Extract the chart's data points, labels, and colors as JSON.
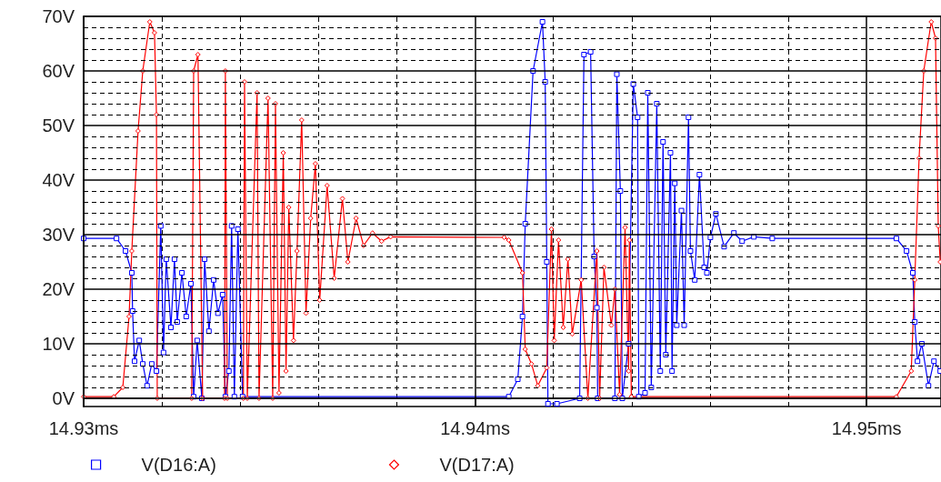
{
  "chart_data": {
    "type": "line",
    "xlim": [
      14.93,
      14.9519
    ],
    "ylim": [
      -1.5,
      70
    ],
    "xticks": [
      {
        "value": 14.93,
        "label": "14.93ms"
      },
      {
        "value": 14.932,
        "label": null
      },
      {
        "value": 14.934,
        "label": null
      },
      {
        "value": 14.936,
        "label": null
      },
      {
        "value": 14.938,
        "label": null
      },
      {
        "value": 14.94,
        "label": "14.94ms"
      },
      {
        "value": 14.942,
        "label": null
      },
      {
        "value": 14.944,
        "label": null
      },
      {
        "value": 14.946,
        "label": null
      },
      {
        "value": 14.948,
        "label": null
      },
      {
        "value": 14.95,
        "label": "14.95ms"
      }
    ],
    "yticks": [
      {
        "value": 0,
        "label": "0V"
      },
      {
        "value": 2,
        "label": null
      },
      {
        "value": 4,
        "label": null
      },
      {
        "value": 6,
        "label": null
      },
      {
        "value": 8,
        "label": null
      },
      {
        "value": 10,
        "label": "10V"
      },
      {
        "value": 12,
        "label": null
      },
      {
        "value": 14,
        "label": null
      },
      {
        "value": 16,
        "label": null
      },
      {
        "value": 18,
        "label": null
      },
      {
        "value": 20,
        "label": "20V"
      },
      {
        "value": 22,
        "label": null
      },
      {
        "value": 24,
        "label": null
      },
      {
        "value": 26,
        "label": null
      },
      {
        "value": 28,
        "label": null
      },
      {
        "value": 30,
        "label": "30V"
      },
      {
        "value": 32,
        "label": null
      },
      {
        "value": 34,
        "label": null
      },
      {
        "value": 36,
        "label": null
      },
      {
        "value": 38,
        "label": null
      },
      {
        "value": 40,
        "label": "40V"
      },
      {
        "value": 42,
        "label": null
      },
      {
        "value": 44,
        "label": null
      },
      {
        "value": 46,
        "label": null
      },
      {
        "value": 48,
        "label": null
      },
      {
        "value": 50,
        "label": "50V"
      },
      {
        "value": 52,
        "label": null
      },
      {
        "value": 54,
        "label": null
      },
      {
        "value": 56,
        "label": null
      },
      {
        "value": 58,
        "label": null
      },
      {
        "value": 60,
        "label": "60V"
      },
      {
        "value": 62,
        "label": null
      },
      {
        "value": 64,
        "label": null
      },
      {
        "value": 66,
        "label": null
      },
      {
        "value": 68,
        "label": null
      },
      {
        "value": 70,
        "label": "70V"
      }
    ],
    "grid": true,
    "legend": "bottom left",
    "line_style": "solid",
    "series": [
      {
        "name": "V(D16:A)",
        "color": "#0000ff",
        "marker": "square",
        "x": [
          14.93,
          14.93084,
          14.93107,
          14.93123,
          14.93125,
          14.9313,
          14.93142,
          14.93151,
          14.93162,
          14.93174,
          14.93186,
          14.93197,
          14.93204,
          14.93211,
          14.93223,
          14.93232,
          14.93239,
          14.93251,
          14.93262,
          14.93274,
          14.93281,
          14.9329,
          14.93302,
          14.93309,
          14.9332,
          14.93332,
          14.93343,
          14.93355,
          14.93362,
          14.93371,
          14.93378,
          14.93385,
          14.93394,
          14.93406,
          14.94086,
          14.94109,
          14.94121,
          14.94128,
          14.94148,
          14.94172,
          14.94179,
          14.94183,
          14.94186,
          14.94209,
          14.94267,
          14.94278,
          14.94295,
          14.94304,
          14.94311,
          14.94313,
          14.94357,
          14.94362,
          14.94371,
          14.94376,
          14.94392,
          14.94404,
          14.94415,
          14.94418,
          14.94434,
          14.94441,
          14.9445,
          14.94464,
          14.94473,
          14.9448,
          14.94487,
          14.94499,
          14.94503,
          14.9451,
          14.94515,
          14.94527,
          14.94534,
          14.94545,
          14.9455,
          14.94561,
          14.94573,
          14.94585,
          14.94592,
          14.94601,
          14.94615,
          14.94636,
          14.94661,
          14.94682,
          14.94712,
          14.94759,
          14.95076,
          14.95102,
          14.95118,
          14.95123,
          14.9513,
          14.95141,
          14.95158,
          14.95172,
          14.95188
        ],
        "values": [
          29.3,
          29.3,
          27,
          23,
          16,
          6.8,
          10.6,
          6.3,
          2.3,
          6.3,
          5,
          31.6,
          8.4,
          25.5,
          13,
          25.5,
          14,
          23,
          15,
          21,
          0.3,
          10.6,
          0,
          25.5,
          12.3,
          21.7,
          15.6,
          19,
          0.3,
          5,
          31.6,
          0.3,
          31,
          0.3,
          0.3,
          3.5,
          15,
          32,
          60,
          69,
          58,
          25,
          -1,
          -1,
          0,
          63,
          63.5,
          26,
          16.6,
          0,
          0,
          59.4,
          38,
          0,
          10,
          57.6,
          51.5,
          0.3,
          1,
          56,
          2,
          54,
          5,
          47,
          8,
          45,
          5,
          39.4,
          13.4,
          34.4,
          13.4,
          51.5,
          27,
          21.7,
          41,
          24,
          23,
          29.5,
          33.8,
          27.8,
          30.3,
          28.8,
          29.6,
          29.3,
          29.3,
          27,
          23,
          14,
          6.8,
          10,
          2.3,
          6.8,
          5
        ]
      },
      {
        "name": "V(D17:A)",
        "color": "#ff0000",
        "marker": "diamond",
        "x": [
          14.93,
          14.93077,
          14.931,
          14.93116,
          14.93123,
          14.93139,
          14.93151,
          14.93169,
          14.93181,
          14.93186,
          14.93188,
          14.93276,
          14.93281,
          14.93292,
          14.93304,
          14.9336,
          14.93362,
          14.93367,
          14.93408,
          14.93411,
          14.93418,
          14.93443,
          14.93448,
          14.93471,
          14.93483,
          14.9349,
          14.93499,
          14.9351,
          14.93517,
          14.93524,
          14.93536,
          14.93545,
          14.93557,
          14.93568,
          14.9358,
          14.93592,
          14.93603,
          14.93622,
          14.9364,
          14.93661,
          14.93675,
          14.93696,
          14.93715,
          14.93738,
          14.93761,
          14.93784,
          14.94074,
          14.94086,
          14.94121,
          14.94128,
          14.94144,
          14.9416,
          14.94183,
          14.94195,
          14.94202,
          14.94213,
          14.94225,
          14.94237,
          14.94248,
          14.94271,
          14.94288,
          14.94311,
          14.94318,
          14.94329,
          14.94348,
          14.94357,
          14.94369,
          14.94383,
          14.94392,
          14.94394,
          14.94399,
          14.95076,
          14.95114,
          14.95123,
          14.95134,
          14.95146,
          14.95165,
          14.95176,
          14.95183,
          14.95188
        ],
        "values": [
          0.3,
          0.3,
          2,
          15,
          27,
          49,
          60,
          69,
          67,
          52,
          0,
          0,
          60,
          63,
          0,
          0,
          60,
          0,
          0,
          58,
          0,
          56,
          0,
          55,
          0,
          54,
          1,
          45,
          5,
          35,
          10.6,
          27,
          51,
          15.6,
          33,
          43,
          18,
          39,
          22,
          36.6,
          25,
          33,
          28,
          30.3,
          28.8,
          29.6,
          29.5,
          29,
          23,
          9,
          6.3,
          2.3,
          5.6,
          31,
          10.6,
          29,
          13,
          25.5,
          11.8,
          21.7,
          0,
          27,
          0,
          24,
          13.4,
          20,
          0.7,
          31.3,
          5,
          29,
          0.3,
          0.3,
          5,
          21.7,
          44,
          60,
          69,
          66,
          31.6,
          25
        ]
      }
    ]
  }
}
